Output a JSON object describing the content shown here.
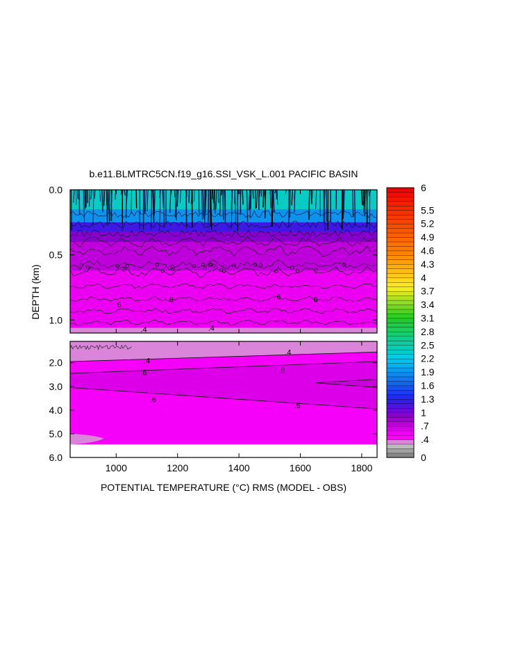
{
  "chart_data": {
    "type": "heatmap",
    "title": "b.e11.BLMTRC5CN.f19_g16.SSI_VSK_L.001 PACIFIC BASIN",
    "xlabel": "POTENTIAL TEMPERATURE (°C) RMS (MODEL - OBS)",
    "ylabel": "DEPTH (km)",
    "xlim": [
      850,
      1850
    ],
    "x_ticks": [
      "1000",
      "1200",
      "1400",
      "1600",
      "1800"
    ],
    "upper_panel": {
      "ylim": [
        0.0,
        1.1
      ],
      "y_ticks": [
        "0.0",
        "0.5",
        "1.0"
      ],
      "y_tick_values": [
        0.0,
        0.5,
        1.0
      ],
      "layers": [
        {
          "top": 0.0,
          "bottom": 0.15,
          "value": 2.4
        },
        {
          "top": 0.15,
          "bottom": 0.25,
          "value": 1.9
        },
        {
          "top": 0.25,
          "bottom": 0.32,
          "value": 1.2
        },
        {
          "top": 0.32,
          "bottom": 0.4,
          "value": 0.95
        },
        {
          "top": 0.4,
          "bottom": 0.62,
          "value": 0.75
        },
        {
          "top": 0.62,
          "bottom": 1.06,
          "value": 0.55
        },
        {
          "top": 1.06,
          "bottom": 1.1,
          "value": 0.35
        }
      ],
      "contour_labels": [
        {
          "text": "6",
          "x": 1010,
          "depth": 0.88
        },
        {
          "text": "6",
          "x": 1180,
          "depth": 0.84
        },
        {
          "text": "6",
          "x": 1530,
          "depth": 0.82
        },
        {
          "text": "6",
          "x": 1650,
          "depth": 0.84
        },
        {
          "text": ".4",
          "x": 1090,
          "depth": 1.07
        },
        {
          "text": ".4",
          "x": 1310,
          "depth": 1.06
        }
      ]
    },
    "lower_panel": {
      "ylim": [
        1.1,
        6.0
      ],
      "y_ticks": [
        "2.0",
        "3.0",
        "4.0",
        "5.0",
        "6.0"
      ],
      "y_tick_values": [
        2.0,
        3.0,
        4.0,
        5.0,
        6.0
      ],
      "contour_labels": [
        {
          "text": ".4",
          "x": 1560,
          "depth": 1.55
        },
        {
          "text": ".4",
          "x": 1100,
          "depth": 1.9
        },
        {
          "text": ".6",
          "x": 1090,
          "depth": 2.4
        },
        {
          "text": ".6",
          "x": 1540,
          "depth": 2.3
        },
        {
          "text": ".6",
          "x": 1120,
          "depth": 3.55
        },
        {
          "text": ".6",
          "x": 1590,
          "depth": 3.8
        }
      ]
    },
    "colorbar": {
      "min": 0,
      "max": 6,
      "step": 0.1,
      "tick_labels": [
        "6",
        "5.5",
        "5.2",
        "4.9",
        "4.6",
        "4.3",
        "4",
        "3.7",
        "3.4",
        "3.1",
        "2.8",
        "2.5",
        "2.2",
        "1.9",
        "1.6",
        "1.3",
        "1",
        ".7",
        ".4",
        "0"
      ],
      "tick_values": [
        6,
        5.5,
        5.2,
        4.9,
        4.6,
        4.3,
        4,
        3.7,
        3.4,
        3.1,
        2.8,
        2.5,
        2.2,
        1.9,
        1.6,
        1.3,
        1,
        0.7,
        0.4,
        0
      ]
    },
    "colors": {
      "gray_low": "#7a7a7a",
      "gray_mid": "#c8c8c8",
      "magenta": "#ff00ff",
      "magenta_dark": "#cc00dd",
      "purple": "#8800cc",
      "blue": "#2222ee",
      "cyan": "#00ccee",
      "green": "#22cc22",
      "yellow": "#ffee22",
      "orange": "#ff8800",
      "red": "#ee0000"
    }
  }
}
